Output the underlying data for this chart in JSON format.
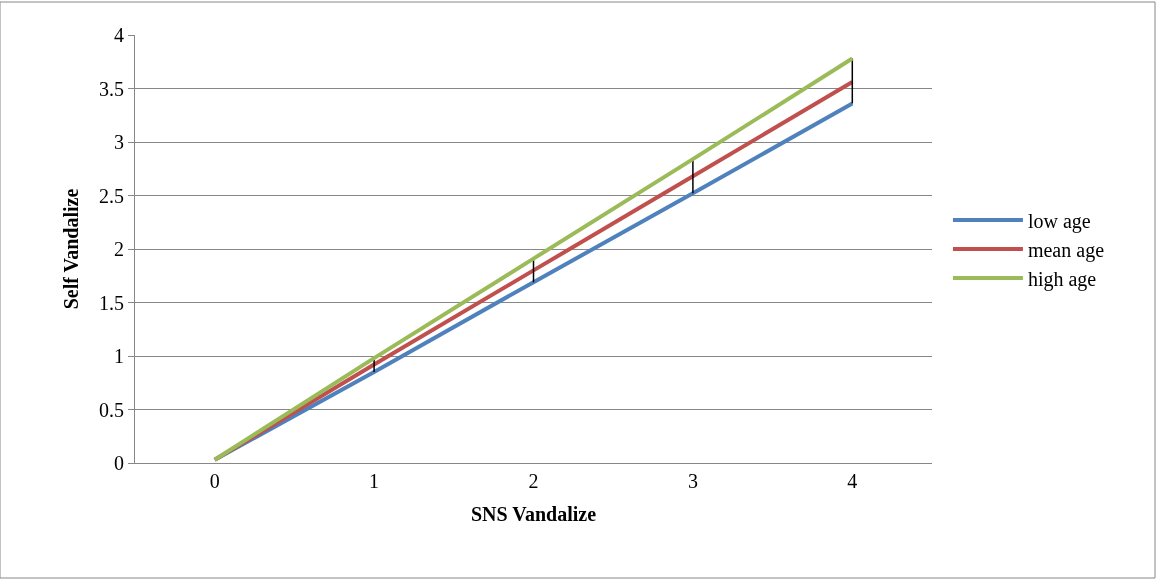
{
  "chart_data": {
    "type": "line",
    "xlabel": "SNS Vandalize",
    "ylabel": "Self Vandalize",
    "categories": [
      "0",
      "1",
      "2",
      "3",
      "4"
    ],
    "series": [
      {
        "name": "low age",
        "color": "#4f81bd",
        "values": [
          0.03,
          0.85,
          1.69,
          2.52,
          3.36
        ]
      },
      {
        "name": "mean age",
        "color": "#c0504d",
        "values": [
          0.03,
          0.92,
          1.8,
          2.68,
          3.56
        ],
        "errors": [
          null,
          [
            0.85,
            0.98
          ],
          [
            1.69,
            1.91
          ],
          [
            2.52,
            2.84
          ],
          [
            3.36,
            3.78
          ]
        ]
      },
      {
        "name": "high age",
        "color": "#9bbb59",
        "values": [
          0.03,
          0.98,
          1.91,
          2.84,
          3.78
        ]
      }
    ],
    "ylim": [
      0,
      4
    ],
    "yticks": [
      0,
      0.5,
      1,
      1.5,
      2,
      2.5,
      3,
      3.5,
      4
    ],
    "grid": "y",
    "legend": "right",
    "marker": "none",
    "line_style": "solid"
  }
}
